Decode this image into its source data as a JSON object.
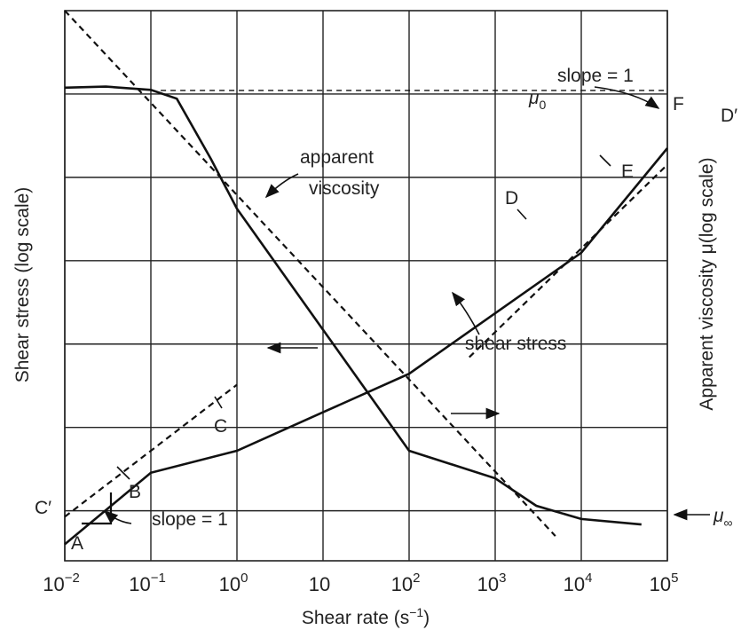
{
  "chart_data": {
    "type": "line",
    "title": "",
    "xlabel": "Shear rate (s",
    "xlabel_sup": "−1",
    "xlabel_end": ")",
    "ylabel_left": "Shear stress (log scale)",
    "ylabel_right": "Apparent viscosity μ(log scale)",
    "x_scale": "log",
    "xlim": [
      0.01,
      100000
    ],
    "grid": true,
    "x_ticks": [
      {
        "x": 0.01,
        "base": "10",
        "sup": "−2"
      },
      {
        "x": 0.1,
        "base": "10",
        "sup": "−1"
      },
      {
        "x": 1,
        "base": "10",
        "sup": "0"
      },
      {
        "x": 10,
        "base": "10",
        "sup": ""
      },
      {
        "x": 100,
        "base": "10",
        "sup": "2"
      },
      {
        "x": 1000,
        "base": "10",
        "sup": "3"
      },
      {
        "x": 10000,
        "base": "10",
        "sup": "4"
      },
      {
        "x": 100000,
        "base": "10",
        "sup": "5"
      }
    ],
    "series": [
      {
        "role": "apparent-viscosity",
        "style": "solid",
        "x": [
          0.01,
          0.03,
          0.1,
          0.2,
          0.5,
          1,
          10,
          100,
          1000,
          3000,
          10000,
          50000
        ],
        "y": [
          0.86,
          0.862,
          0.856,
          0.84,
          0.73,
          0.64,
          0.42,
          0.2,
          0.15,
          0.1,
          0.076,
          0.066
        ]
      },
      {
        "role": "shear-stress",
        "style": "solid",
        "x": [
          0.01,
          0.1,
          1,
          10,
          100,
          10000,
          100000
        ],
        "y": [
          0.03,
          0.16,
          0.2,
          0.27,
          0.34,
          0.56,
          0.75
        ]
      },
      {
        "role": "slope-1-tangent-low",
        "style": "dashed",
        "x": [
          0.01,
          1
        ],
        "y": [
          0.08,
          0.32
        ]
      },
      {
        "role": "slope-1-tangent-high",
        "style": "dashed",
        "x": [
          500,
          100000
        ],
        "y": [
          0.37,
          0.72
        ]
      },
      {
        "role": "power-law-asymptote",
        "style": "dashed",
        "x": [
          0.01,
          5000
        ],
        "y": [
          1.0,
          0.045
        ]
      },
      {
        "role": "mu0-line",
        "style": "dashed",
        "x": [
          0.13,
          100000
        ],
        "y": [
          0.855,
          0.855
        ]
      }
    ],
    "annotations": {
      "apparent_viscosity_line1": "apparent",
      "apparent_viscosity_line2": "viscosity",
      "shear_stress": "shear stress",
      "slope_top": "slope = 1",
      "slope_bottom": "slope = 1",
      "mu0_symbol": "μ",
      "mu0_sub": "0",
      "mu_inf_symbol": "μ",
      "mu_inf_sub": "∞",
      "point_a": "A",
      "point_b": "B",
      "point_c": "C",
      "point_c_prime": "C′",
      "point_d": "D",
      "point_d_prime": "D′",
      "point_e": "E",
      "point_f": "F"
    }
  }
}
